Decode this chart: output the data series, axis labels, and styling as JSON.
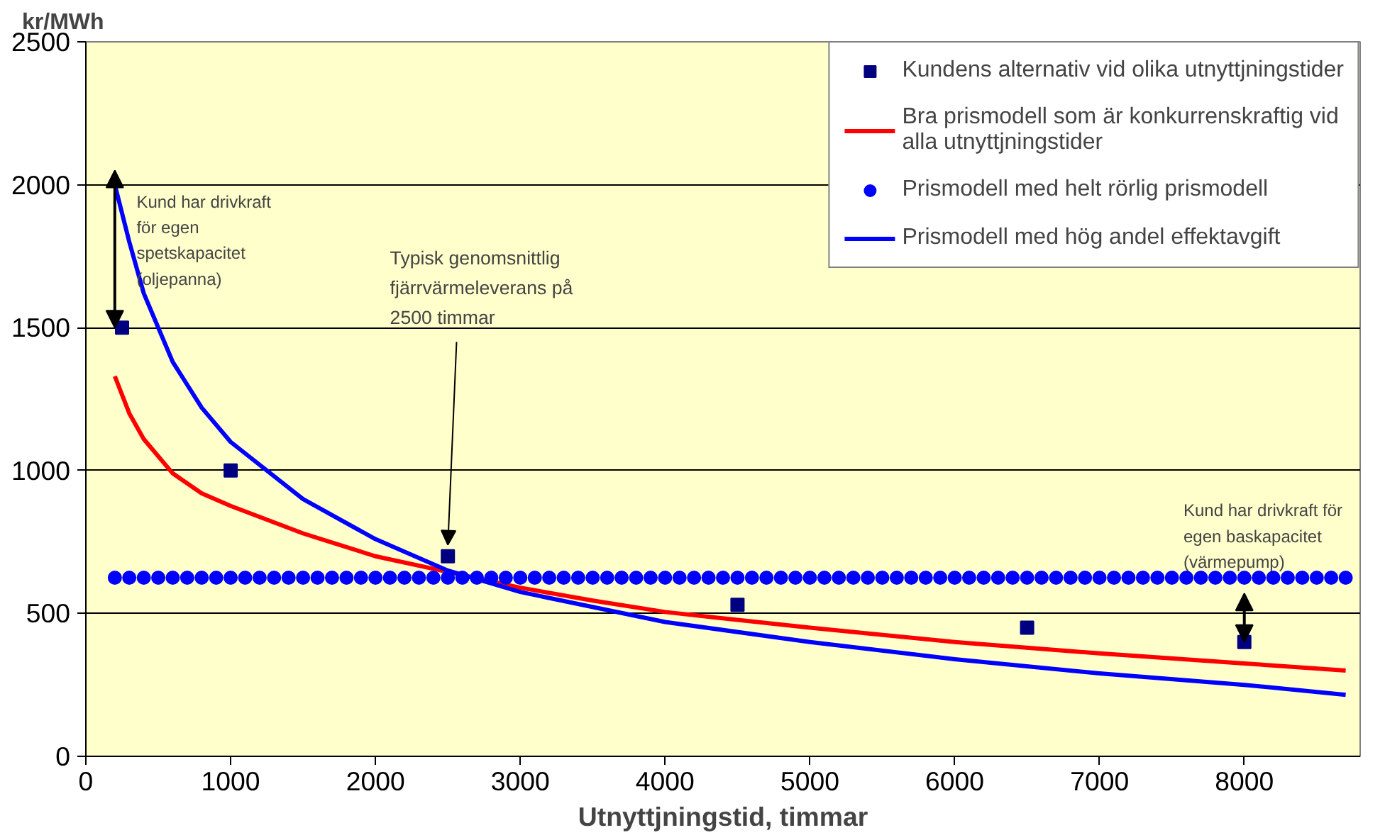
{
  "chart_data": {
    "type": "line",
    "ylabel": "kr/MWh",
    "xlabel": "Utnyttjningstid, timmar",
    "xlim": [
      0,
      8800
    ],
    "ylim": [
      0,
      2500
    ],
    "xticks": [
      0,
      1000,
      2000,
      3000,
      4000,
      5000,
      6000,
      7000,
      8000
    ],
    "yticks": [
      0,
      500,
      1000,
      1500,
      2000,
      2500
    ],
    "grid": "y",
    "legend": "top right",
    "series": [
      {
        "name": "Kundens alternativ vid olika utnyttjningstider",
        "type": "scatter",
        "marker": "square",
        "color": "#000080",
        "x": [
          250,
          1000,
          2500,
          4500,
          6500,
          8000
        ],
        "values": [
          1500,
          1000,
          700,
          530,
          450,
          400
        ]
      },
      {
        "name": "Bra prismodell som är konkurrenskraftig vid\nalla utnyttjningstider",
        "color": "#ff0000",
        "x": [
          200,
          300,
          400,
          600,
          800,
          1000,
          1500,
          2000,
          2500,
          3000,
          3500,
          4000,
          5000,
          6000,
          7000,
          8000,
          8700
        ],
        "values": [
          1330,
          1200,
          1110,
          990,
          920,
          876,
          780,
          700,
          645,
          590,
          545,
          505,
          450,
          400,
          360,
          325,
          300
        ]
      },
      {
        "name": "Prismodell med helt rörlig prismodell",
        "type": "scatter",
        "marker": "circle",
        "color": "#0000ff",
        "x": [
          200,
          300,
          400,
          500,
          600,
          700,
          800,
          900,
          1000,
          1100,
          1200,
          1300,
          1400,
          1500,
          1600,
          1700,
          1800,
          1900,
          2000,
          2100,
          2200,
          2300,
          2400,
          2500,
          2600,
          2700,
          2800,
          2900,
          3000,
          3100,
          3200,
          3300,
          3400,
          3500,
          3600,
          3700,
          3800,
          3900,
          4000,
          4100,
          4200,
          4300,
          4400,
          4500,
          4600,
          4700,
          4800,
          4900,
          5000,
          5100,
          5200,
          5300,
          5400,
          5500,
          5600,
          5700,
          5800,
          5900,
          6000,
          6100,
          6200,
          6300,
          6400,
          6500,
          6600,
          6700,
          6800,
          6900,
          7000,
          7100,
          7200,
          7300,
          7400,
          7500,
          7600,
          7700,
          7800,
          7900,
          8000,
          8100,
          8200,
          8300,
          8400,
          8500,
          8600,
          8700
        ],
        "values": [
          625,
          625,
          625,
          625,
          625,
          625,
          625,
          625,
          625,
          625,
          625,
          625,
          625,
          625,
          625,
          625,
          625,
          625,
          625,
          625,
          625,
          625,
          625,
          625,
          625,
          625,
          625,
          625,
          625,
          625,
          625,
          625,
          625,
          625,
          625,
          625,
          625,
          625,
          625,
          625,
          625,
          625,
          625,
          625,
          625,
          625,
          625,
          625,
          625,
          625,
          625,
          625,
          625,
          625,
          625,
          625,
          625,
          625,
          625,
          625,
          625,
          625,
          625,
          625,
          625,
          625,
          625,
          625,
          625,
          625,
          625,
          625,
          625,
          625,
          625,
          625,
          625,
          625,
          625,
          625,
          625,
          625,
          625,
          625,
          625,
          625
        ]
      },
      {
        "name": "Prismodell med hög andel effektavgift",
        "color": "#0000ff",
        "x": [
          200,
          300,
          400,
          600,
          800,
          1000,
          1500,
          2000,
          2500,
          3000,
          4000,
          5000,
          6000,
          7000,
          8000,
          8700
        ],
        "values": [
          2000,
          1800,
          1620,
          1380,
          1220,
          1100,
          900,
          760,
          650,
          575,
          470,
          400,
          340,
          290,
          250,
          215
        ]
      }
    ],
    "annotations": [
      {
        "text": "Kund har drivkraft\nför egen\nspetskapacitet\n(oljepanna)",
        "x": 200,
        "y": 2000
      },
      {
        "text": "Typisk genomsnittlig\nfjärrvärmeleverans på\n2500 timmar",
        "x": 2500,
        "y": 700
      },
      {
        "text": "Kund har drivkraft för\negen baskapacitet\n(värmepump)",
        "x": 8000,
        "y": 625
      }
    ]
  }
}
